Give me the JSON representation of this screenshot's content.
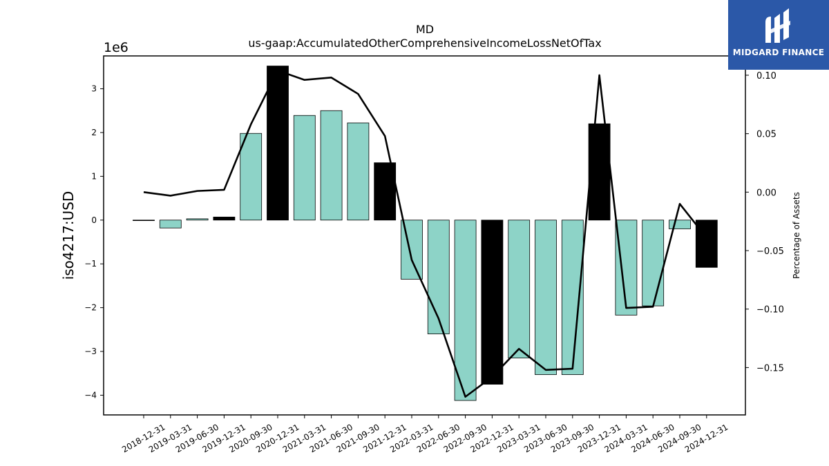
{
  "brand": {
    "name": "MIDGARD FINANCE",
    "color": "#2b58a8"
  },
  "chart_data": {
    "type": "bar",
    "title": "MD",
    "subtitle": "us-gaap:AccumulatedOtherComprehensiveIncomeLossNetOfTax",
    "ylabel": "iso4217:USD",
    "y_offset_label": "1e6",
    "y2label": "Percentage of Assets",
    "ylim": [
      -4.45,
      3.75
    ],
    "y2lim": [
      -0.1905,
      0.1165
    ],
    "yticks": [
      -4,
      -3,
      -2,
      -1,
      0,
      1,
      2,
      3
    ],
    "y2ticks": [
      -0.15,
      -0.1,
      -0.05,
      0.0,
      0.05,
      0.1
    ],
    "categories": [
      "2018-12-31",
      "2019-03-31",
      "2019-06-30",
      "2019-12-31",
      "2020-09-30",
      "2020-12-31",
      "2021-03-31",
      "2021-06-30",
      "2021-09-30",
      "2021-12-31",
      "2022-03-31",
      "2022-06-30",
      "2022-09-30",
      "2022-12-31",
      "2023-03-31",
      "2023-06-30",
      "2023-09-30",
      "2023-12-31",
      "2024-03-31",
      "2024-06-30",
      "2024-09-30",
      "2024-12-31"
    ],
    "series": [
      {
        "type": "bar",
        "axis": "left",
        "values": [
          -0.01,
          -0.18,
          0.03,
          0.07,
          1.98,
          3.52,
          2.39,
          2.5,
          2.22,
          1.31,
          -1.35,
          -2.6,
          -4.12,
          -3.75,
          -3.15,
          -3.53,
          -3.53,
          2.2,
          -2.17,
          -1.96,
          -0.2,
          -1.08
        ],
        "highlight": [
          false,
          false,
          false,
          true,
          false,
          true,
          false,
          false,
          false,
          true,
          false,
          false,
          false,
          true,
          false,
          false,
          false,
          true,
          false,
          false,
          false,
          true
        ]
      },
      {
        "type": "line",
        "axis": "right",
        "values": [
          0.0,
          -0.003,
          0.001,
          0.002,
          0.058,
          0.104,
          0.096,
          0.098,
          0.084,
          0.048,
          -0.058,
          -0.108,
          -0.175,
          -0.158,
          -0.134,
          -0.152,
          -0.151,
          0.1,
          -0.099,
          -0.098,
          -0.01,
          -0.039
        ]
      }
    ],
    "colors": {
      "bar": "#8dd3c7",
      "highlight": "#000000",
      "line": "#000000"
    }
  }
}
